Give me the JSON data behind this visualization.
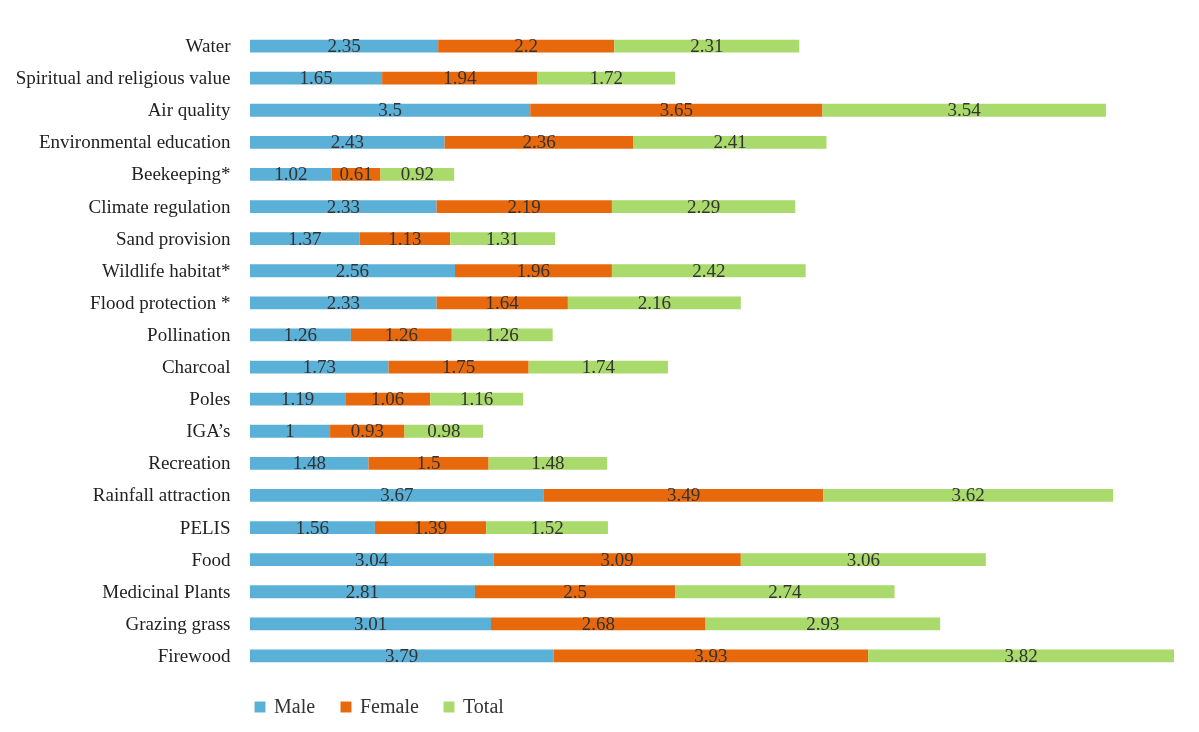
{
  "chart_data": {
    "type": "bar",
    "orientation": "horizontal",
    "stacked": true,
    "data_labels": true,
    "legend": "bottom",
    "tick_labels": "y",
    "grid": false,
    "categories": [
      "Water",
      "Spiritual and religious value",
      "Air quality",
      "Environmental education",
      "Beekeeping*",
      "Climate regulation",
      "Sand provision",
      "Wildlife habitat*",
      "Flood protection *",
      "Pollination",
      "Charcoal",
      "Poles",
      "IGA’s",
      "Recreation",
      "Rainfall attraction",
      "PELIS",
      "Food",
      "Medicinal Plants",
      "Grazing grass",
      "Firewood"
    ],
    "series": [
      {
        "name": "Male",
        "color": "#5bb0d8",
        "values": [
          2.35,
          1.65,
          3.5,
          2.43,
          1.02,
          2.33,
          1.37,
          2.56,
          2.33,
          1.26,
          1.73,
          1.19,
          1,
          1.48,
          3.67,
          1.56,
          3.04,
          2.81,
          3.01,
          3.79
        ]
      },
      {
        "name": "Female",
        "color": "#e8690c",
        "values": [
          2.2,
          1.94,
          3.65,
          2.36,
          0.61,
          2.19,
          1.13,
          1.96,
          1.64,
          1.26,
          1.75,
          1.06,
          0.93,
          1.5,
          3.49,
          1.39,
          3.09,
          2.5,
          2.68,
          3.93
        ]
      },
      {
        "name": "Total",
        "color": "#a9da6b",
        "values": [
          2.31,
          1.72,
          3.54,
          2.41,
          0.92,
          2.29,
          1.31,
          2.42,
          2.16,
          1.26,
          1.74,
          1.16,
          0.98,
          1.48,
          3.62,
          1.52,
          3.06,
          2.74,
          2.93,
          3.82
        ]
      }
    ]
  }
}
